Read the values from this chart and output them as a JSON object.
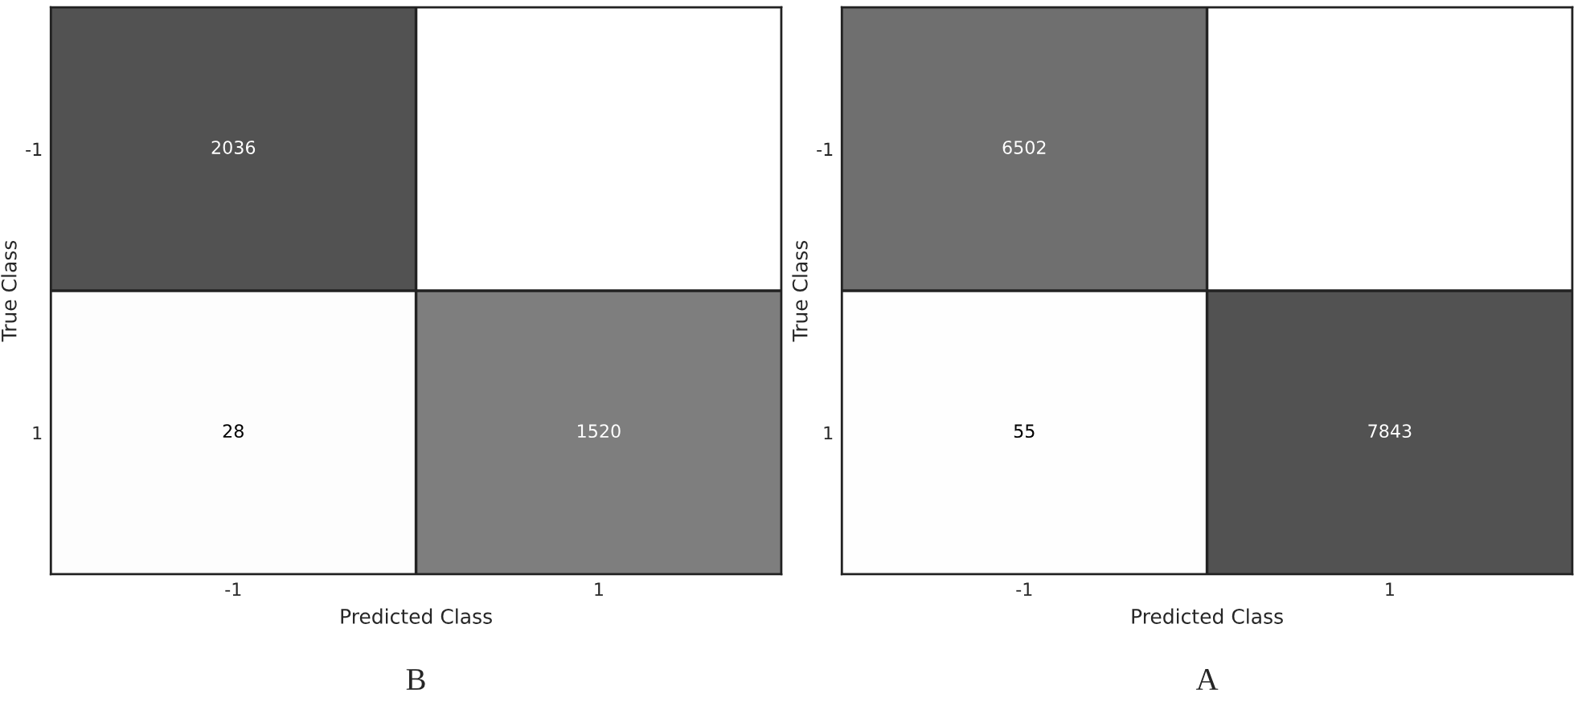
{
  "chart_data": [
    {
      "type": "heatmap",
      "title": "B",
      "xlabel": "Predicted Class",
      "ylabel": "True Class",
      "categories": [
        "-1",
        "1"
      ],
      "y_categories": [
        "-1",
        "1"
      ],
      "cells": [
        [
          2036,
          null
        ],
        [
          28,
          1520
        ]
      ],
      "data_labels": true
    },
    {
      "type": "heatmap",
      "title": "A",
      "xlabel": "Predicted Class",
      "ylabel": "True Class",
      "categories": [
        "-1",
        "1"
      ],
      "y_categories": [
        "-1",
        "1"
      ],
      "cells": [
        [
          6502,
          null
        ],
        [
          55,
          7843
        ]
      ],
      "data_labels": true
    }
  ]
}
